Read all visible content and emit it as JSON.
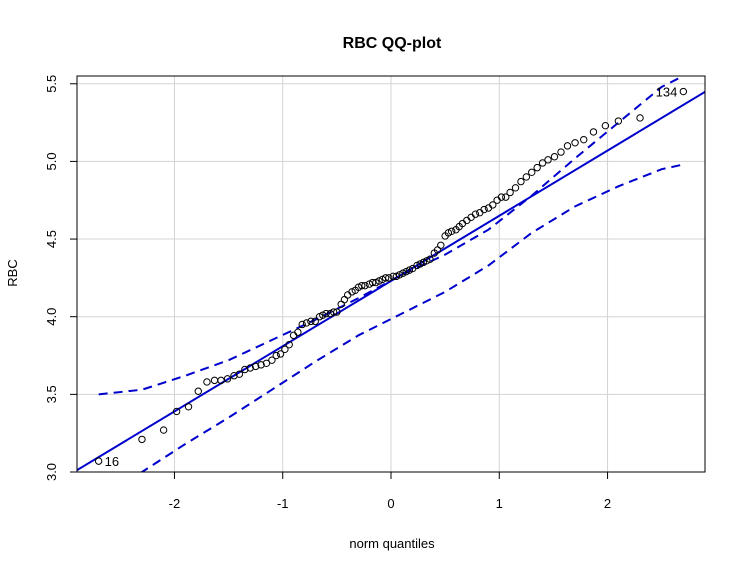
{
  "chart_data": {
    "type": "scatter",
    "title": "RBC QQ-plot",
    "xlabel": "norm quantiles",
    "ylabel": "RBC",
    "xlim": [
      -2.9,
      2.9
    ],
    "ylim": [
      3.0,
      5.55
    ],
    "x_ticks": [
      -2,
      -1,
      0,
      1,
      2
    ],
    "y_ticks": [
      3.0,
      3.5,
      4.0,
      4.5,
      5.0,
      5.5
    ],
    "x_tick_labels": [
      "-2",
      "-1",
      "0",
      "1",
      "2"
    ],
    "y_tick_labels": [
      "3.0",
      "3.5",
      "4.0",
      "4.5",
      "5.0",
      "5.5"
    ],
    "grid": true,
    "colors": {
      "reference": "#0000cd",
      "points": "#000000",
      "grid": "#d3d3d3"
    },
    "reference_line": {
      "intercept": 4.23,
      "slope": 0.42
    },
    "envelope": {
      "x": [
        -2.7,
        -2.3,
        -1.9,
        -1.5,
        -1.1,
        -0.7,
        -0.3,
        0.1,
        0.5,
        0.9,
        1.3,
        1.7,
        2.1,
        2.5,
        2.7
      ],
      "upper": [
        3.5,
        3.53,
        3.62,
        3.72,
        3.85,
        3.98,
        4.12,
        4.27,
        4.4,
        4.56,
        4.78,
        5.02,
        5.25,
        5.48,
        5.55
      ],
      "lower": [
        2.88,
        3.0,
        3.18,
        3.35,
        3.53,
        3.71,
        3.88,
        4.02,
        4.16,
        4.33,
        4.54,
        4.71,
        4.84,
        4.95,
        4.98
      ]
    },
    "labels": [
      {
        "text": "16",
        "x": -2.7,
        "y": 3.07,
        "side": "right"
      },
      {
        "text": "134",
        "x": 2.7,
        "y": 5.45,
        "side": "left"
      }
    ],
    "series": [
      {
        "x": [
          -2.7,
          -2.3,
          -2.1,
          -1.98,
          -1.87,
          -1.78,
          -1.7,
          -1.63,
          -1.57,
          -1.51,
          -1.45,
          -1.4,
          -1.35,
          -1.3,
          -1.25,
          -1.2,
          -1.15,
          -1.1,
          -1.06,
          -1.02,
          -0.98,
          -0.94,
          -0.9,
          -0.86,
          -0.82,
          -0.78,
          -0.74,
          -0.7,
          -0.66,
          -0.63,
          -0.6,
          -0.56,
          -0.53,
          -0.5,
          -0.46,
          -0.43,
          -0.4,
          -0.36,
          -0.33,
          -0.3,
          -0.27,
          -0.24,
          -0.2,
          -0.17,
          -0.14,
          -0.11,
          -0.08,
          -0.05,
          -0.02,
          0.02,
          0.05,
          0.08,
          0.11,
          0.14,
          0.17,
          0.2,
          0.24,
          0.27,
          0.3,
          0.33,
          0.36,
          0.4,
          0.43,
          0.46,
          0.5,
          0.53,
          0.56,
          0.6,
          0.63,
          0.66,
          0.7,
          0.74,
          0.78,
          0.82,
          0.86,
          0.9,
          0.94,
          0.98,
          1.02,
          1.06,
          1.1,
          1.15,
          1.2,
          1.25,
          1.3,
          1.35,
          1.4,
          1.45,
          1.51,
          1.57,
          1.63,
          1.7,
          1.78,
          1.87,
          1.98,
          2.1,
          2.3,
          2.7
        ],
        "values": [
          3.07,
          3.21,
          3.27,
          3.39,
          3.42,
          3.52,
          3.58,
          3.59,
          3.59,
          3.6,
          3.62,
          3.63,
          3.66,
          3.67,
          3.68,
          3.69,
          3.7,
          3.72,
          3.75,
          3.76,
          3.79,
          3.82,
          3.88,
          3.9,
          3.95,
          3.96,
          3.97,
          3.97,
          4.0,
          4.01,
          4.02,
          4.02,
          4.03,
          4.03,
          4.08,
          4.11,
          4.14,
          4.16,
          4.17,
          4.19,
          4.2,
          4.2,
          4.21,
          4.22,
          4.22,
          4.23,
          4.24,
          4.25,
          4.25,
          4.26,
          4.26,
          4.27,
          4.28,
          4.29,
          4.3,
          4.31,
          4.33,
          4.34,
          4.35,
          4.36,
          4.37,
          4.41,
          4.43,
          4.46,
          4.52,
          4.54,
          4.55,
          4.56,
          4.58,
          4.6,
          4.62,
          4.64,
          4.66,
          4.67,
          4.69,
          4.7,
          4.72,
          4.75,
          4.77,
          4.77,
          4.8,
          4.83,
          4.87,
          4.9,
          4.93,
          4.96,
          4.99,
          5.01,
          5.03,
          5.06,
          5.1,
          5.12,
          5.14,
          5.19,
          5.23,
          5.26,
          5.28,
          5.45
        ]
      }
    ]
  }
}
